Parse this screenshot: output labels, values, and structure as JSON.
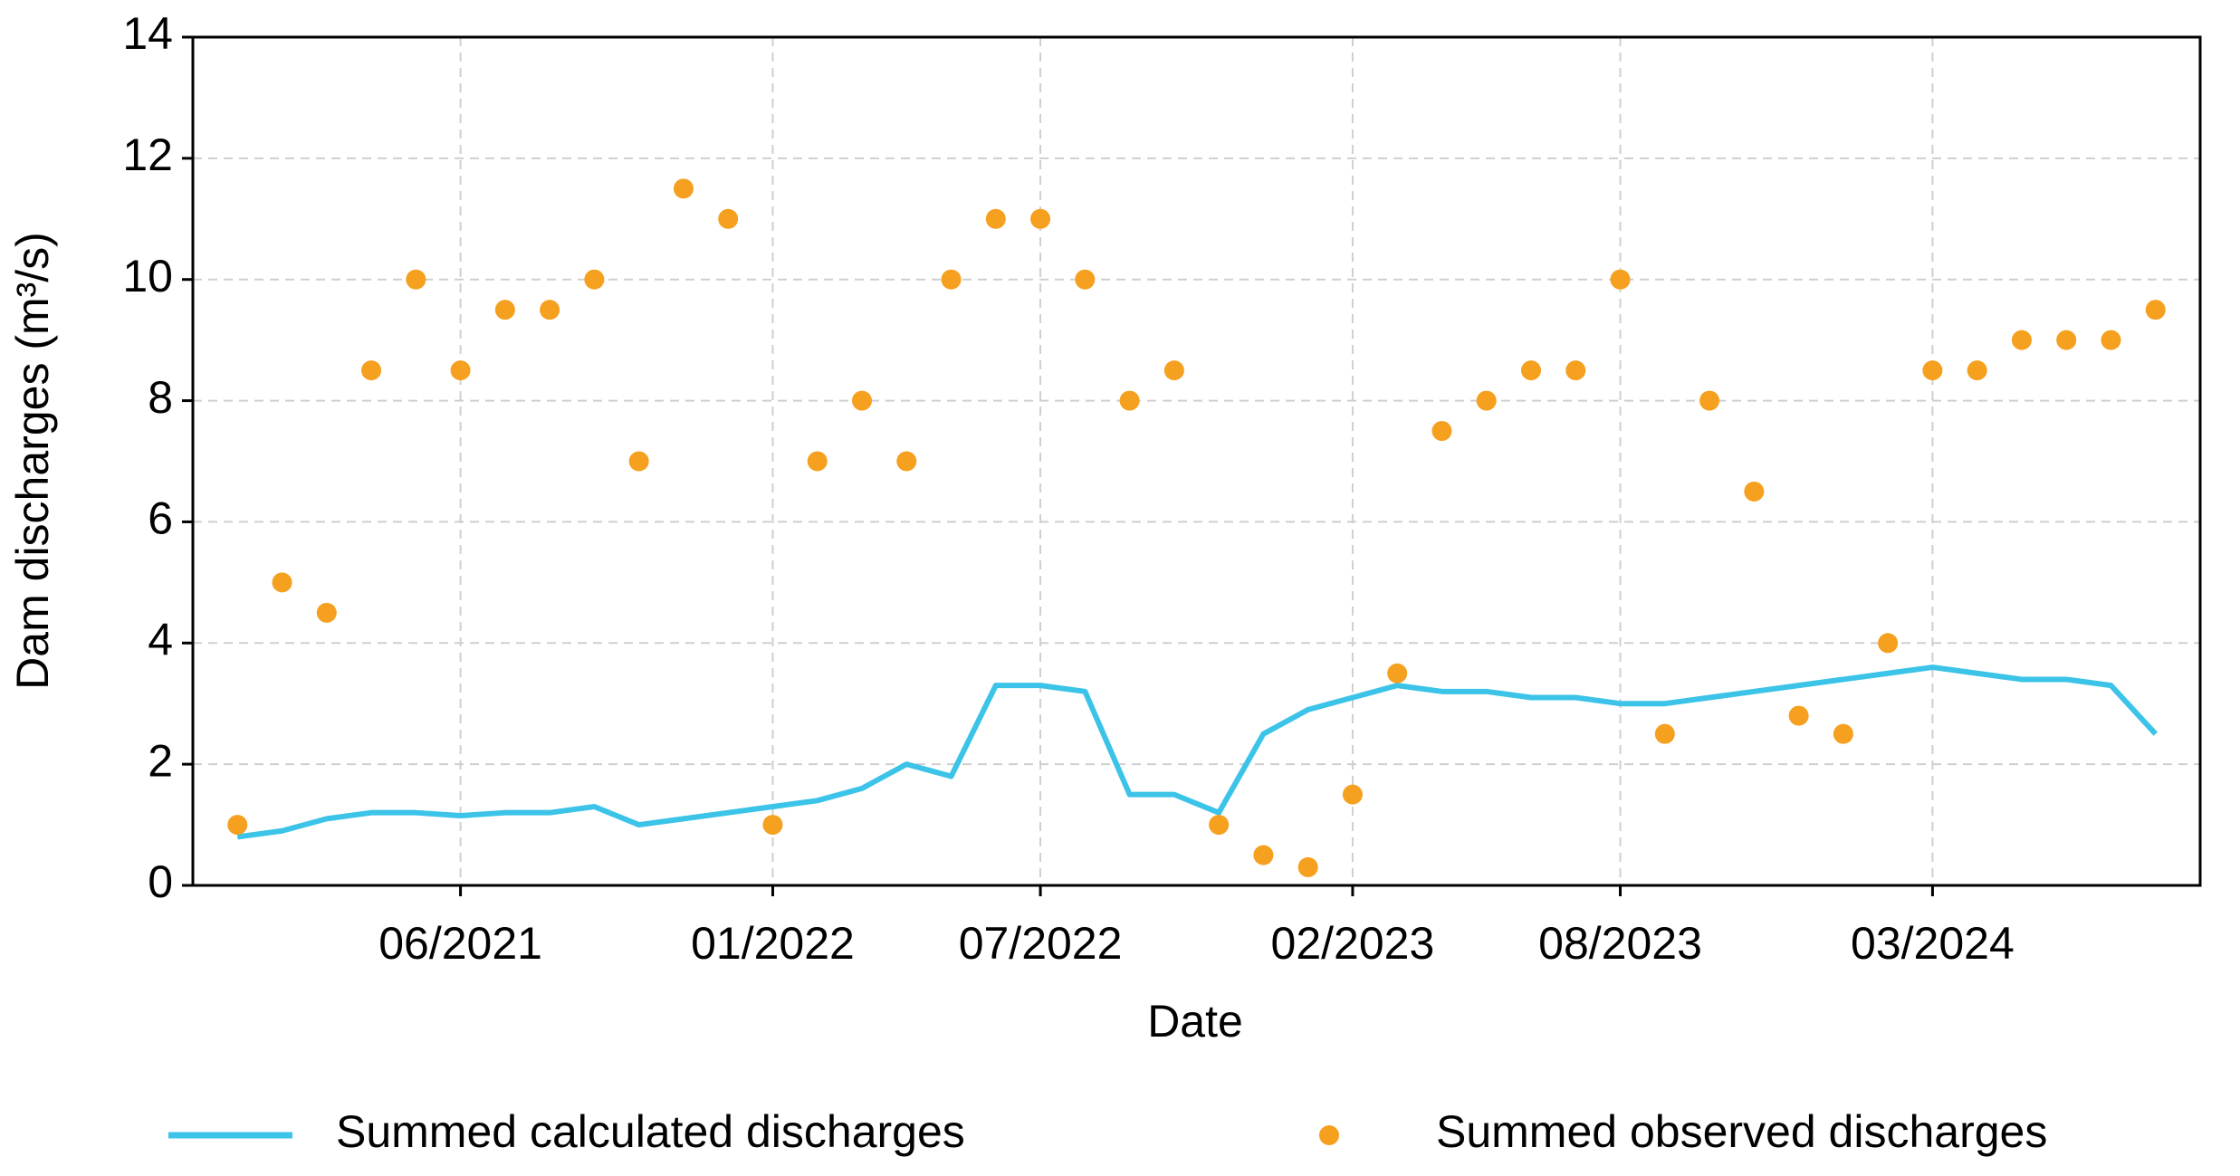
{
  "chart_data": {
    "type": "line",
    "xlabel": "Date",
    "ylabel": "Dam discharges (m³/s)",
    "x": [
      "2021-01",
      "2021-02",
      "2021-03",
      "2021-04",
      "2021-05",
      "2021-06",
      "2021-07",
      "2021-08",
      "2021-09",
      "2021-10",
      "2021-11",
      "2021-12",
      "2022-01",
      "2022-02",
      "2022-03",
      "2022-04",
      "2022-05",
      "2022-06",
      "2022-07",
      "2022-08",
      "2022-09",
      "2022-10",
      "2022-11",
      "2022-12",
      "2023-01",
      "2023-02",
      "2023-03",
      "2023-04",
      "2023-05",
      "2023-06",
      "2023-07",
      "2023-08",
      "2023-09",
      "2023-10",
      "2023-11",
      "2023-12",
      "2024-01",
      "2024-02",
      "2024-03",
      "2024-04",
      "2024-05",
      "2024-06",
      "2024-07",
      "2024-08"
    ],
    "series": [
      {
        "name": "Summed calculated discharges",
        "type": "line",
        "color": "#3bc3e8",
        "values": [
          0.8,
          0.9,
          1.1,
          1.2,
          1.2,
          1.15,
          1.2,
          1.2,
          1.3,
          1.0,
          1.1,
          1.2,
          1.3,
          1.4,
          1.6,
          2.0,
          1.8,
          3.3,
          3.3,
          3.2,
          1.5,
          1.5,
          1.2,
          2.5,
          2.9,
          3.1,
          3.3,
          3.2,
          3.2,
          3.1,
          3.1,
          3.0,
          3.0,
          3.1,
          3.2,
          3.3,
          3.4,
          3.5,
          3.6,
          3.5,
          3.4,
          3.4,
          3.3,
          2.5
        ]
      },
      {
        "name": "Summed observed discharges",
        "type": "scatter",
        "color": "#f5a01e",
        "values": [
          1.0,
          5.0,
          4.5,
          8.5,
          10.0,
          8.5,
          9.5,
          9.5,
          10.0,
          7.0,
          11.5,
          11.0,
          1.0,
          7.0,
          8.0,
          7.0,
          10.0,
          11.0,
          11.0,
          10.0,
          8.0,
          8.5,
          1.0,
          0.5,
          0.3,
          1.5,
          3.5,
          7.5,
          8.0,
          8.5,
          8.5,
          10.0,
          2.5,
          8.0,
          6.5,
          2.8,
          2.5,
          4.0,
          8.5,
          8.5,
          9.0,
          9.0,
          9.0,
          9.5
        ]
      }
    ],
    "xlim": [
      "2020-12",
      "2024-09"
    ],
    "xticks": [
      {
        "value": "2021-06",
        "label": "06/2021"
      },
      {
        "value": "2022-01",
        "label": "01/2022"
      },
      {
        "value": "2022-07",
        "label": "07/2022"
      },
      {
        "value": "2023-02",
        "label": "02/2023"
      },
      {
        "value": "2023-08",
        "label": "08/2023"
      },
      {
        "value": "2024-03",
        "label": "03/2024"
      }
    ],
    "ylim": [
      0,
      14
    ],
    "yticks": [
      0,
      2,
      4,
      6,
      8,
      10,
      12,
      14
    ],
    "grid": true,
    "legend": "bottom"
  }
}
